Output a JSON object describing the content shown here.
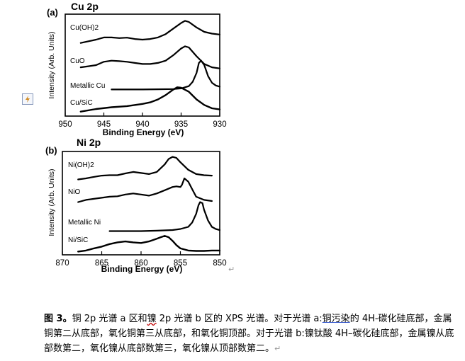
{
  "icons": {
    "side_icon": "document-anchor-icon",
    "return": "paragraph-return-icon"
  },
  "return_glyph": "↵",
  "caption": {
    "label": "图 3。",
    "part1": "铜 2p 光谱 a 区和",
    "wavy": "镍",
    "part2": " 2p 光谱 b 区的 XPS 光谱。对于光谱 a:",
    "underlined": "铜污染",
    "part3": "的 4H-碳化硅底部，金属铜第二从底部，氧化铜第三从底部，和氧化铜顶部。对于光谱 b:镍钛酸 4H–碳化硅底部，金属镍从底部数第二，氧化镍从底部数第三，氧化镍从顶部数第二。"
  },
  "chart_data": [
    {
      "type": "line",
      "panel_label": "(a)",
      "title": "Cu 2p",
      "xlabel": "Binding Energy (eV)",
      "ylabel": "Intensity (Arb. Units)",
      "xlim": [
        950,
        930
      ],
      "x_ticks": [
        950,
        945,
        940,
        935,
        930
      ],
      "series": [
        {
          "name": "Cu(OH)2",
          "x": [
            948,
            946,
            945,
            944,
            943,
            942,
            941,
            940,
            939,
            938,
            937,
            936,
            935,
            934.5,
            934,
            933,
            932,
            931,
            930
          ],
          "y": [
            3.3,
            3.45,
            3.55,
            3.55,
            3.52,
            3.54,
            3.48,
            3.45,
            3.48,
            3.55,
            3.7,
            3.95,
            4.2,
            4.3,
            4.25,
            4.0,
            3.8,
            3.72,
            3.68
          ]
        },
        {
          "name": "CuO",
          "x": [
            948,
            947,
            946,
            945,
            944,
            943,
            942,
            941,
            940,
            939,
            938,
            937,
            936,
            935,
            934.5,
            934,
            933,
            932,
            931,
            930
          ],
          "y": [
            2.2,
            2.25,
            2.3,
            2.45,
            2.5,
            2.48,
            2.45,
            2.4,
            2.35,
            2.35,
            2.4,
            2.5,
            2.75,
            3.05,
            3.15,
            3.1,
            2.7,
            2.35,
            2.2,
            2.15
          ]
        },
        {
          "name": "Metallic Cu",
          "x": [
            944,
            942,
            940,
            938,
            936,
            935,
            934,
            933.5,
            933,
            932.7,
            932.4,
            932,
            931.5,
            931,
            930.5,
            930
          ],
          "y": [
            1.2,
            1.2,
            1.2,
            1.21,
            1.22,
            1.25,
            1.35,
            1.55,
            1.95,
            2.4,
            2.5,
            2.3,
            1.8,
            1.5,
            1.38,
            1.33
          ]
        },
        {
          "name": "Cu/SiC",
          "x": [
            948,
            946,
            944,
            942,
            940,
            939,
            938,
            937,
            936,
            935.5,
            935,
            934,
            933,
            932,
            931,
            930
          ],
          "y": [
            0.2,
            0.32,
            0.4,
            0.45,
            0.55,
            0.62,
            0.75,
            0.95,
            1.2,
            1.3,
            1.28,
            1.1,
            0.75,
            0.5,
            0.35,
            0.3
          ]
        }
      ]
    },
    {
      "type": "line",
      "panel_label": "(b)",
      "title": "Ni 2p",
      "xlabel": "Binding Energy (eV)",
      "ylabel": "Intensity (Arb. Units)",
      "xlim": [
        870,
        850
      ],
      "x_ticks": [
        870,
        865,
        860,
        855,
        850
      ],
      "series": [
        {
          "name": "Ni(OH)2",
          "x": [
            868,
            867,
            866,
            865,
            864,
            863,
            862,
            861,
            860,
            859,
            858,
            857,
            856.5,
            856,
            855.5,
            855,
            854,
            853,
            852,
            851
          ],
          "y": [
            3.5,
            3.55,
            3.62,
            3.68,
            3.7,
            3.7,
            3.78,
            3.85,
            3.8,
            3.75,
            3.85,
            4.2,
            4.45,
            4.55,
            4.5,
            4.3,
            3.95,
            3.75,
            3.7,
            3.68
          ]
        },
        {
          "name": "NiO",
          "x": [
            868,
            867,
            866,
            865,
            864,
            863,
            862,
            861,
            860,
            859,
            858,
            857,
            856,
            855.5,
            855,
            854.8,
            854.5,
            854,
            853.5,
            853,
            852,
            851
          ],
          "y": [
            2.45,
            2.55,
            2.6,
            2.65,
            2.7,
            2.72,
            2.8,
            2.85,
            2.8,
            2.75,
            2.85,
            3.0,
            3.15,
            3.18,
            3.15,
            3.25,
            3.55,
            3.4,
            3.05,
            2.7,
            2.55,
            2.5
          ]
        },
        {
          "name": "Metallic Ni",
          "x": [
            864,
            862,
            860,
            858,
            856,
            855,
            854,
            853.5,
            853,
            852.7,
            852.5,
            852.2,
            852,
            851.5,
            851,
            850.5,
            850
          ],
          "y": [
            1.1,
            1.1,
            1.1,
            1.12,
            1.15,
            1.2,
            1.3,
            1.5,
            1.9,
            2.3,
            2.45,
            2.4,
            2.1,
            1.6,
            1.3,
            1.2,
            1.15
          ]
        },
        {
          "name": "Ni/SiC",
          "x": [
            868,
            867,
            866,
            865,
            864,
            863,
            862,
            861,
            860,
            859,
            858,
            857.5,
            857,
            856.5,
            856,
            855.5,
            855,
            854,
            853,
            852,
            851,
            850
          ],
          "y": [
            0.15,
            0.2,
            0.3,
            0.38,
            0.5,
            0.58,
            0.62,
            0.58,
            0.55,
            0.62,
            0.75,
            0.82,
            0.88,
            0.82,
            0.65,
            0.45,
            0.3,
            0.2,
            0.18,
            0.18,
            0.2,
            0.2
          ]
        }
      ]
    }
  ]
}
